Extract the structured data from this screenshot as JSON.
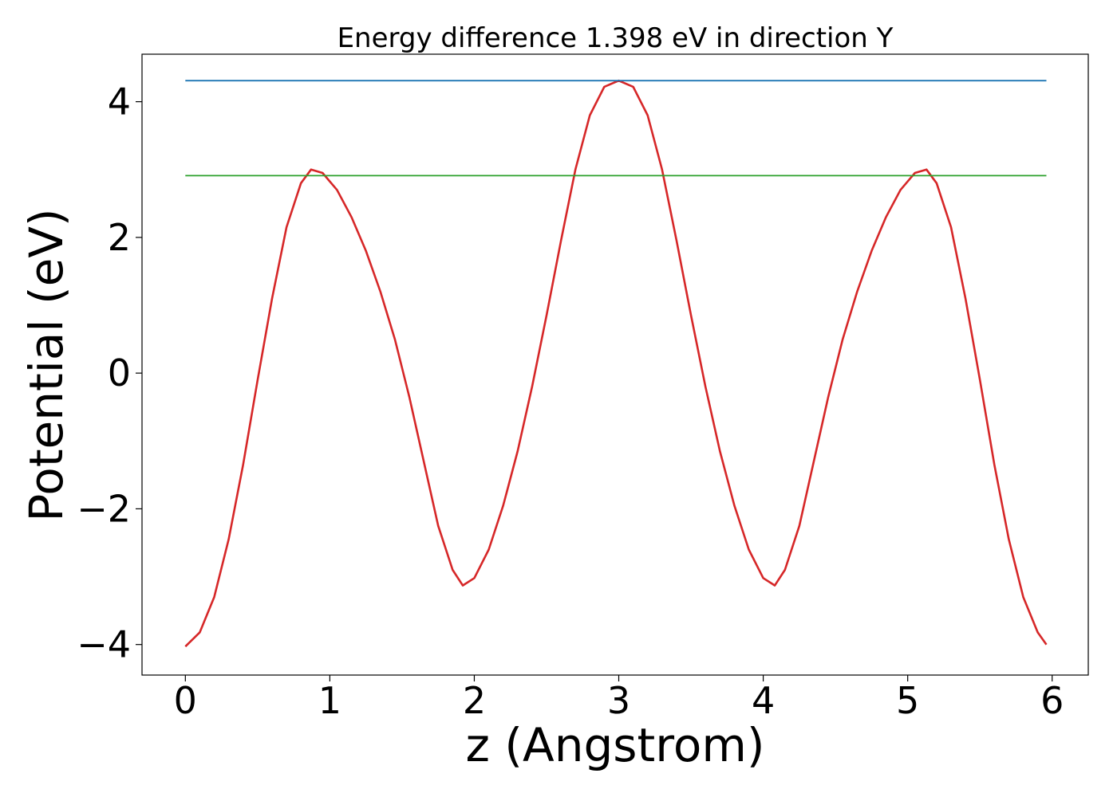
{
  "chart_data": {
    "type": "line",
    "title": "Energy difference 1.398 eV in direction Y",
    "xlabel": "z (Angstrom)",
    "ylabel": "Potential (eV)",
    "xlim": [
      -0.3,
      6.25
    ],
    "ylim": [
      -4.45,
      4.7
    ],
    "xticks": [
      0,
      1,
      2,
      3,
      4,
      5,
      6
    ],
    "xtick_labels": [
      "0",
      "1",
      "2",
      "3",
      "4",
      "5",
      "6"
    ],
    "yticks": [
      -4,
      -2,
      0,
      2,
      4
    ],
    "ytick_labels": [
      "−4",
      "−2",
      "0",
      "2",
      "4"
    ],
    "grid": false,
    "series": [
      {
        "color": "#d62728",
        "points": [
          [
            0.0,
            -4.03
          ],
          [
            0.1,
            -3.82
          ],
          [
            0.2,
            -3.3
          ],
          [
            0.3,
            -2.45
          ],
          [
            0.4,
            -1.35
          ],
          [
            0.5,
            -0.1
          ],
          [
            0.6,
            1.1
          ],
          [
            0.7,
            2.15
          ],
          [
            0.8,
            2.8
          ],
          [
            0.87,
            3.0
          ],
          [
            0.95,
            2.95
          ],
          [
            1.05,
            2.7
          ],
          [
            1.15,
            2.3
          ],
          [
            1.25,
            1.8
          ],
          [
            1.35,
            1.2
          ],
          [
            1.45,
            0.5
          ],
          [
            1.55,
            -0.35
          ],
          [
            1.65,
            -1.3
          ],
          [
            1.75,
            -2.25
          ],
          [
            1.85,
            -2.9
          ],
          [
            1.92,
            -3.13
          ],
          [
            2.0,
            -3.02
          ],
          [
            2.1,
            -2.6
          ],
          [
            2.2,
            -1.95
          ],
          [
            2.3,
            -1.15
          ],
          [
            2.4,
            -0.2
          ],
          [
            2.5,
            0.85
          ],
          [
            2.6,
            1.95
          ],
          [
            2.7,
            3.0
          ],
          [
            2.8,
            3.8
          ],
          [
            2.9,
            4.22
          ],
          [
            3.0,
            4.31
          ],
          [
            3.1,
            4.22
          ],
          [
            3.2,
            3.8
          ],
          [
            3.3,
            3.0
          ],
          [
            3.4,
            1.95
          ],
          [
            3.5,
            0.85
          ],
          [
            3.6,
            -0.2
          ],
          [
            3.7,
            -1.15
          ],
          [
            3.8,
            -1.95
          ],
          [
            3.9,
            -2.6
          ],
          [
            4.0,
            -3.02
          ],
          [
            4.08,
            -3.13
          ],
          [
            4.15,
            -2.9
          ],
          [
            4.25,
            -2.25
          ],
          [
            4.35,
            -1.3
          ],
          [
            4.45,
            -0.35
          ],
          [
            4.55,
            0.5
          ],
          [
            4.65,
            1.2
          ],
          [
            4.75,
            1.8
          ],
          [
            4.85,
            2.3
          ],
          [
            4.95,
            2.7
          ],
          [
            5.05,
            2.95
          ],
          [
            5.13,
            3.0
          ],
          [
            5.2,
            2.8
          ],
          [
            5.3,
            2.15
          ],
          [
            5.4,
            1.1
          ],
          [
            5.5,
            -0.1
          ],
          [
            5.6,
            -1.35
          ],
          [
            5.7,
            -2.45
          ],
          [
            5.8,
            -3.3
          ],
          [
            5.9,
            -3.82
          ],
          [
            5.96,
            -4.0
          ]
        ]
      },
      {
        "color": "#1f77b4",
        "points": [
          [
            0.0,
            4.31
          ],
          [
            5.96,
            4.31
          ]
        ]
      },
      {
        "color": "#2ca02c",
        "points": [
          [
            0.0,
            2.91
          ],
          [
            5.96,
            2.91
          ]
        ]
      }
    ]
  }
}
